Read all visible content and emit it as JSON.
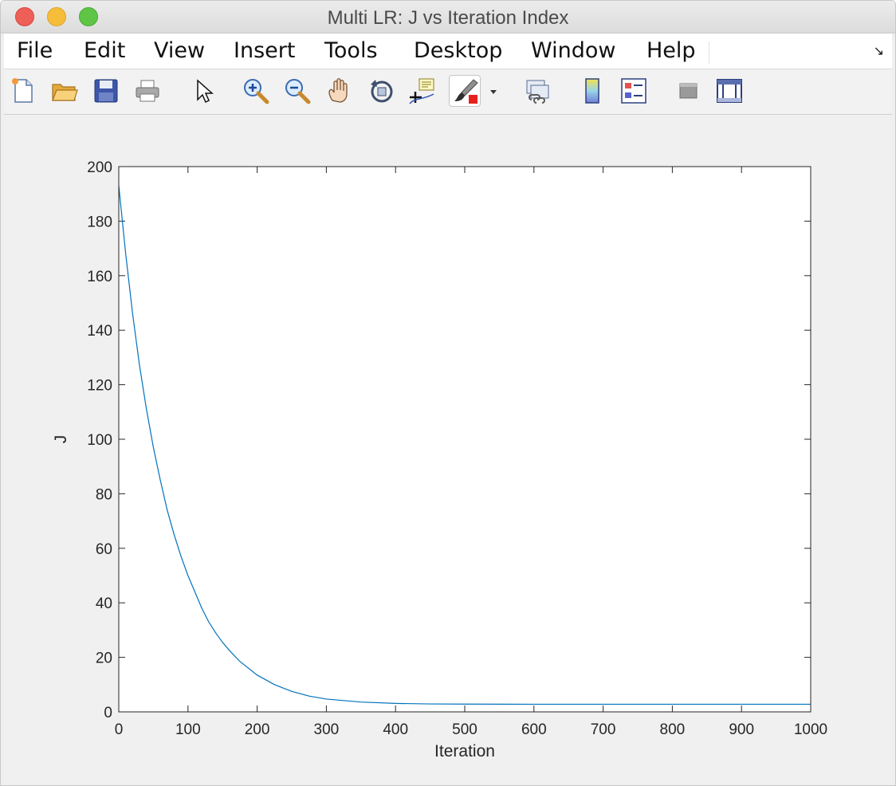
{
  "window": {
    "title": "Multi LR: J vs Iteration Index"
  },
  "menubar": {
    "items": [
      "File",
      "Edit",
      "View",
      "Insert",
      "Tools",
      "Desktop",
      "Window",
      "Help"
    ]
  },
  "toolbar": {
    "icons": [
      "new-figure-icon",
      "open-file-icon",
      "save-icon",
      "print-icon",
      "pointer-icon",
      "zoom-in-icon",
      "zoom-out-icon",
      "pan-hand-icon",
      "rotate-3d-icon",
      "data-cursor-icon",
      "brush-icon",
      "brush-dropdown-icon",
      "link-plot-icon",
      "colorbar-icon",
      "legend-icon",
      "hide-plot-tools-icon",
      "show-plot-tools-icon"
    ]
  },
  "colors": {
    "line": "#0072bd",
    "axes_background": "#ffffff",
    "figure_background": "#f0f0f0"
  },
  "chart_data": {
    "type": "line",
    "title": "",
    "xlabel": "Iteration",
    "ylabel": "J",
    "xlim": [
      0,
      1000
    ],
    "ylim": [
      0,
      200
    ],
    "xticks": [
      0,
      100,
      200,
      300,
      400,
      500,
      600,
      700,
      800,
      900,
      1000
    ],
    "yticks": [
      0,
      20,
      40,
      60,
      80,
      100,
      120,
      140,
      160,
      180,
      200
    ],
    "grid": false,
    "series": [
      {
        "x": [
          0,
          10,
          20,
          30,
          40,
          50,
          60,
          70,
          80,
          90,
          100,
          110,
          120,
          130,
          140,
          150,
          160,
          175,
          200,
          225,
          250,
          275,
          300,
          350,
          400,
          450,
          500,
          600,
          700,
          800,
          900,
          1000
        ],
        "y": [
          193,
          168,
          146,
          127,
          111,
          97,
          85,
          74,
          65,
          57,
          50,
          44,
          38,
          33,
          29,
          25.5,
          22.5,
          18.5,
          13.5,
          10,
          7.5,
          5.8,
          4.7,
          3.6,
          3.1,
          2.9,
          2.85,
          2.8,
          2.8,
          2.8,
          2.8,
          2.8
        ]
      }
    ]
  }
}
